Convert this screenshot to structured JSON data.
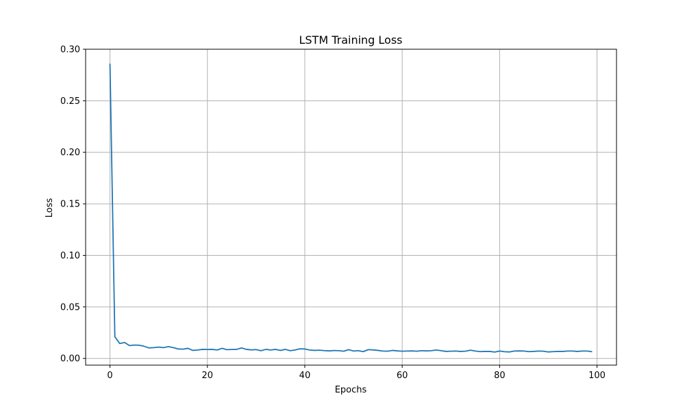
{
  "chart_data": {
    "type": "line",
    "title": "LSTM Training Loss",
    "xlabel": "Epochs",
    "ylabel": "Loss",
    "xlim": [
      -5,
      104
    ],
    "ylim": [
      -0.0065,
      0.3
    ],
    "xticks": [
      0,
      20,
      40,
      60,
      80,
      100
    ],
    "xtick_labels": [
      "0",
      "20",
      "40",
      "60",
      "80",
      "100"
    ],
    "yticks": [
      0.0,
      0.05,
      0.1,
      0.15,
      0.2,
      0.25,
      0.3
    ],
    "ytick_labels": [
      "0.00",
      "0.05",
      "0.10",
      "0.15",
      "0.20",
      "0.25",
      "0.30"
    ],
    "grid": true,
    "line_color": "#1f77b4",
    "grid_color": "#b0b0b0",
    "series": [
      {
        "x": [
          0,
          1,
          2,
          3,
          4,
          5,
          6,
          7,
          8,
          9,
          10,
          11,
          12,
          13,
          14,
          15,
          16,
          17,
          18,
          19,
          20,
          21,
          22,
          23,
          24,
          25,
          26,
          27,
          28,
          29,
          30,
          31,
          32,
          33,
          34,
          35,
          36,
          37,
          38,
          39,
          40,
          41,
          42,
          43,
          44,
          45,
          46,
          47,
          48,
          49,
          50,
          51,
          52,
          53,
          54,
          55,
          56,
          57,
          58,
          59,
          60,
          61,
          62,
          63,
          64,
          65,
          66,
          67,
          68,
          69,
          70,
          71,
          72,
          73,
          74,
          75,
          76,
          77,
          78,
          79,
          80,
          81,
          82,
          83,
          84,
          85,
          86,
          87,
          88,
          89,
          90,
          91,
          92,
          93,
          94,
          95,
          96,
          97,
          98,
          99
        ],
        "values": [
          0.286,
          0.021,
          0.0145,
          0.0155,
          0.0125,
          0.013,
          0.0128,
          0.0118,
          0.0102,
          0.0105,
          0.011,
          0.0105,
          0.0115,
          0.0105,
          0.0092,
          0.009,
          0.0098,
          0.0078,
          0.0082,
          0.0088,
          0.0087,
          0.0088,
          0.0082,
          0.0098,
          0.0085,
          0.0087,
          0.0088,
          0.0102,
          0.0088,
          0.0083,
          0.0086,
          0.0075,
          0.0088,
          0.0082,
          0.0088,
          0.0078,
          0.0088,
          0.0075,
          0.0082,
          0.0093,
          0.0092,
          0.0082,
          0.0078,
          0.008,
          0.0076,
          0.0073,
          0.0077,
          0.0075,
          0.007,
          0.0085,
          0.0072,
          0.0075,
          0.0066,
          0.0085,
          0.0083,
          0.0078,
          0.0072,
          0.007,
          0.0078,
          0.0073,
          0.007,
          0.0072,
          0.0073,
          0.007,
          0.0075,
          0.0073,
          0.0075,
          0.0082,
          0.0075,
          0.0068,
          0.007,
          0.0072,
          0.0068,
          0.007,
          0.008,
          0.0072,
          0.0066,
          0.0068,
          0.0068,
          0.0062,
          0.0072,
          0.0065,
          0.0063,
          0.0072,
          0.0073,
          0.0072,
          0.0066,
          0.0068,
          0.0072,
          0.007,
          0.0063,
          0.0066,
          0.0068,
          0.0068,
          0.0072,
          0.0072,
          0.0068,
          0.0072,
          0.0072,
          0.0065
        ]
      }
    ]
  }
}
